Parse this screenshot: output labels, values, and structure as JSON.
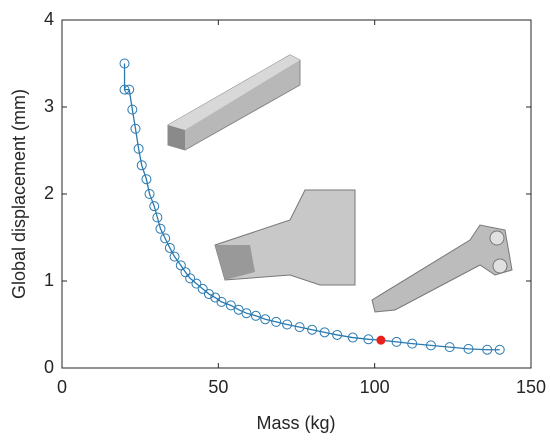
{
  "chart_data": {
    "type": "line",
    "x_label": "Mass (kg)",
    "y_label": "Global displacement (mm)",
    "xlim": [
      0,
      150
    ],
    "ylim": [
      0,
      4
    ],
    "xticks": [
      0,
      50,
      100,
      150
    ],
    "yticks": [
      0,
      1,
      2,
      3,
      4
    ],
    "series": [
      {
        "color": "#2a7ab0",
        "x": [
          20,
          20,
          21.5,
          22.5,
          23.5,
          24.5,
          25.5,
          27,
          28,
          29.5,
          30.5,
          31.5,
          33,
          34.5,
          36,
          38,
          39.5,
          41,
          43,
          45,
          47,
          49,
          51,
          54,
          56.5,
          59,
          62,
          65,
          68.5,
          72,
          76,
          80,
          84,
          88,
          93,
          98,
          102,
          107,
          112,
          118,
          124,
          130,
          136,
          140
        ],
        "values": [
          3.5,
          3.2,
          3.2,
          2.97,
          2.75,
          2.52,
          2.33,
          2.17,
          2.0,
          1.86,
          1.73,
          1.6,
          1.49,
          1.38,
          1.28,
          1.18,
          1.1,
          1.03,
          0.97,
          0.91,
          0.85,
          0.81,
          0.76,
          0.72,
          0.67,
          0.63,
          0.6,
          0.56,
          0.53,
          0.5,
          0.47,
          0.44,
          0.41,
          0.38,
          0.35,
          0.33,
          0.32,
          0.3,
          0.28,
          0.26,
          0.24,
          0.22,
          0.21,
          0.21
        ]
      }
    ],
    "highlight_index": 36,
    "highlight_color": "#e8201c"
  }
}
